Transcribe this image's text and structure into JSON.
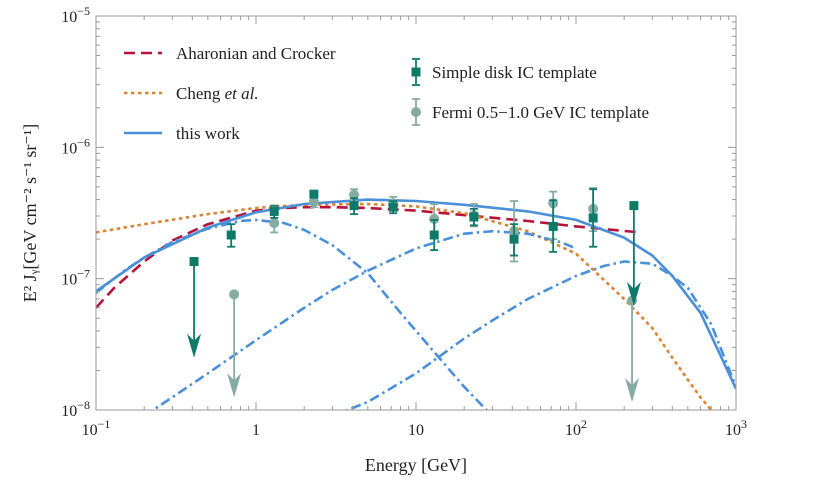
{
  "chart_data": {
    "type": "line",
    "xlabel": "Energy [GeV]",
    "ylabel": "E² Jᵧ[GeV cm⁻² s⁻¹ sr⁻¹]",
    "xscale": "log",
    "yscale": "log",
    "xlim": [
      0.1,
      1000
    ],
    "ylim": [
      1e-08,
      1e-05
    ],
    "grid": false,
    "x_ticks": [
      {
        "value": 0.1,
        "base": "10",
        "exp": "−1"
      },
      {
        "value": 1,
        "base": "1",
        "exp": ""
      },
      {
        "value": 10,
        "base": "10",
        "exp": ""
      },
      {
        "value": 100,
        "base": "10",
        "exp": "2"
      },
      {
        "value": 1000,
        "base": "10",
        "exp": "3"
      }
    ],
    "y_ticks": [
      {
        "value": 1e-08,
        "base": "10",
        "exp": "−8"
      },
      {
        "value": 1e-07,
        "base": "10",
        "exp": "−7"
      },
      {
        "value": 1e-06,
        "base": "10",
        "exp": "−6"
      },
      {
        "value": 1e-05,
        "base": "10",
        "exp": "−5"
      }
    ],
    "legend_left": [
      {
        "series": "aharonian",
        "label": "Aharonian and Crocker",
        "italic": ""
      },
      {
        "series": "cheng",
        "label": "Cheng ",
        "italic": "et al."
      },
      {
        "series": "thiswork",
        "label": "this work",
        "italic": ""
      }
    ],
    "legend_right": [
      {
        "series": "simple",
        "label": "Simple disk IC template"
      },
      {
        "series": "fermi",
        "label": "Fermi 0.5−1.0 GeV IC template"
      }
    ],
    "colors": {
      "aharonian": "#b8123a",
      "cheng": "#dc8230",
      "thiswork": "#4a90d9",
      "simple": "#0d7a6a",
      "fermi": "#86aca2"
    },
    "series": [
      {
        "id": "aharonian",
        "style": "dashed",
        "x": [
          0.1,
          0.13,
          0.2,
          0.3,
          0.5,
          0.8,
          1,
          1.5,
          2,
          3,
          5,
          10,
          20,
          50,
          100,
          250
        ],
        "y": [
          6e-08,
          8.5e-08,
          1.35e-07,
          1.95e-07,
          2.6e-07,
          3.05e-07,
          3.3e-07,
          3.45e-07,
          3.5e-07,
          3.5e-07,
          3.45e-07,
          3.3e-07,
          3.05e-07,
          2.75e-07,
          2.5e-07,
          2.25e-07
        ]
      },
      {
        "id": "cheng",
        "style": "dotted",
        "x": [
          0.1,
          0.2,
          0.5,
          1,
          2,
          5,
          10,
          20,
          50,
          100,
          200,
          300,
          400,
          500,
          600,
          700
        ],
        "y": [
          2.25e-07,
          2.6e-07,
          3.1e-07,
          3.45e-07,
          3.65e-07,
          3.7e-07,
          3.55e-07,
          3.15e-07,
          2.3e-07,
          1.55e-07,
          7e-08,
          4.2e-08,
          2.5e-08,
          1.7e-08,
          1.25e-08,
          1e-08
        ]
      },
      {
        "id": "thiswork",
        "style": "solid",
        "x": [
          0.1,
          0.2,
          0.5,
          1,
          2,
          5,
          10,
          20,
          50,
          100,
          200,
          300,
          400,
          600,
          800,
          1000
        ],
        "y": [
          8e-08,
          1.45e-07,
          2.45e-07,
          3.2e-07,
          3.7e-07,
          4e-07,
          3.9e-07,
          3.65e-07,
          3.25e-07,
          2.8e-07,
          2.05e-07,
          1.5e-07,
          1.05e-07,
          5.5e-08,
          2.6e-08,
          1.45e-08
        ]
      },
      {
        "id": "comp1",
        "style": "dashdot",
        "x": [
          0.1,
          0.15,
          0.2,
          0.3,
          0.5,
          0.8,
          1,
          1.5,
          2,
          3,
          5,
          8,
          10,
          20,
          30
        ],
        "y": [
          7.8e-08,
          1.15e-07,
          1.45e-07,
          1.9e-07,
          2.4e-07,
          2.75e-07,
          2.8e-07,
          2.65e-07,
          2.35e-07,
          1.8e-07,
          1.1e-07,
          5.5e-08,
          4e-08,
          1.5e-08,
          9e-09
        ]
      },
      {
        "id": "comp2",
        "style": "dashdot",
        "x": [
          0.2,
          0.3,
          0.5,
          1,
          2,
          3,
          5,
          10,
          20,
          30,
          50,
          80,
          100
        ],
        "y": [
          9e-09,
          1.25e-08,
          1.9e-08,
          3.4e-08,
          6e-08,
          8.2e-08,
          1.15e-07,
          1.7e-07,
          2.2e-07,
          2.3e-07,
          2.2e-07,
          1.9e-07,
          1.7e-07
        ]
      },
      {
        "id": "comp3",
        "style": "dashdot",
        "x": [
          3,
          5,
          10,
          20,
          30,
          50,
          100,
          150,
          200,
          300,
          400,
          500,
          700,
          1000
        ],
        "y": [
          9e-09,
          1.15e-08,
          1.9e-08,
          3.5e-08,
          4.8e-08,
          7e-08,
          1.05e-07,
          1.25e-07,
          1.35e-07,
          1.3e-07,
          1.05e-07,
          8.5e-08,
          4.5e-08,
          1.5e-08
        ]
      }
    ],
    "points": {
      "simple": [
        {
          "x": 0.7,
          "y": 2.15e-07,
          "lo": 1.75e-07,
          "hi": 2.6e-07
        },
        {
          "x": 1.3,
          "y": 3.25e-07,
          "lo": 2.9e-07,
          "hi": 3.6e-07
        },
        {
          "x": 2.3,
          "y": 4.4e-07,
          "lo": 4.15e-07,
          "hi": 4.65e-07
        },
        {
          "x": 4.1,
          "y": 3.6e-07,
          "lo": 3.1e-07,
          "hi": 4.1e-07
        },
        {
          "x": 7.2,
          "y": 3.5e-07,
          "lo": 3.15e-07,
          "hi": 3.9e-07
        },
        {
          "x": 13,
          "y": 2.15e-07,
          "lo": 1.65e-07,
          "hi": 2.8e-07
        },
        {
          "x": 23,
          "y": 2.95e-07,
          "lo": 2.55e-07,
          "hi": 3.4e-07
        },
        {
          "x": 41,
          "y": 2e-07,
          "lo": 1.5e-07,
          "hi": 2.6e-07
        },
        {
          "x": 72,
          "y": 2.5e-07,
          "lo": 1.6e-07,
          "hi": 3.95e-07
        },
        {
          "x": 128,
          "y": 2.9e-07,
          "lo": 1.75e-07,
          "hi": 4.8e-07
        }
      ],
      "fermi": [
        {
          "x": 1.3,
          "y": 2.65e-07,
          "lo": 2.25e-07,
          "hi": 3.1e-07
        },
        {
          "x": 2.3,
          "y": 3.85e-07,
          "lo": 3.5e-07,
          "hi": 4.2e-07
        },
        {
          "x": 4.1,
          "y": 4.35e-07,
          "lo": 3.9e-07,
          "hi": 4.8e-07
        },
        {
          "x": 7.2,
          "y": 3.75e-07,
          "lo": 3.3e-07,
          "hi": 4.2e-07
        },
        {
          "x": 13,
          "y": 2.85e-07,
          "lo": 2.2e-07,
          "hi": 3.7e-07
        },
        {
          "x": 23,
          "y": 3.05e-07,
          "lo": 2.5e-07,
          "hi": 3.7e-07
        },
        {
          "x": 41,
          "y": 2.3e-07,
          "lo": 1.35e-07,
          "hi": 3.9e-07
        },
        {
          "x": 72,
          "y": 3.75e-07,
          "lo": 2e-07,
          "hi": 4.6e-07
        },
        {
          "x": 128,
          "y": 3.4e-07,
          "lo": 2.3e-07,
          "hi": 4.9e-07
        }
      ]
    },
    "upper_limits": {
      "simple": [
        {
          "x": 0.41,
          "y": 1.35e-07,
          "to": 2.5e-08
        },
        {
          "x": 230,
          "y": 3.6e-07,
          "to": 6.2e-08
        }
      ],
      "fermi": [
        {
          "x": 0.73,
          "y": 7.6e-08,
          "to": 1.25e-08
        },
        {
          "x": 224,
          "y": 6.8e-08,
          "to": 1.15e-08
        }
      ]
    }
  }
}
